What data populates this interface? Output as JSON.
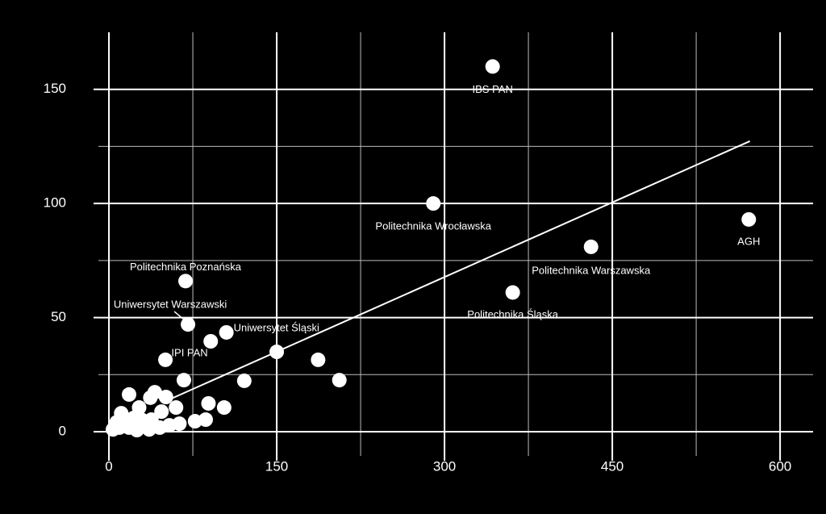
{
  "chart_data": {
    "type": "scatter",
    "x": [
      343,
      290,
      572,
      431,
      361,
      68.5,
      70.7,
      105,
      50.5,
      150,
      187,
      206,
      121,
      91,
      67,
      89,
      103,
      86.5,
      77,
      60,
      51,
      18,
      41,
      37,
      27,
      11,
      47,
      63,
      54,
      45.4,
      36,
      25,
      18,
      9.4,
      3.6,
      29,
      38,
      22,
      14,
      7,
      40
    ],
    "y": [
      160,
      100,
      93,
      81,
      61,
      66,
      47,
      43.5,
      31.5,
      35,
      31.5,
      22.6,
      22.3,
      39.6,
      22.6,
      12.4,
      10.6,
      5.3,
      4.6,
      10.6,
      15.2,
      16.3,
      17.3,
      14.9,
      10.6,
      8.1,
      8.8,
      3.5,
      2.8,
      1.8,
      1,
      0.7,
      1.8,
      1.8,
      1,
      5.3,
      5.3,
      6,
      4.6,
      4.2,
      2.5
    ],
    "point_labels": [
      "IBS PAN",
      "Politechnika Wrocławska",
      "AGH",
      "Politechnika Warszawska",
      "Politechnika Śląska",
      "Politechnika Poznańska",
      "Uniwersytet Warszawski",
      "Uniwersytet Śląski",
      "IPI PAN",
      null,
      null,
      null,
      null,
      null,
      null,
      null,
      null,
      null,
      null,
      null,
      null,
      null,
      null,
      null,
      null,
      null,
      null,
      null,
      null,
      null,
      null,
      null,
      null,
      null,
      null,
      null,
      null,
      null,
      null,
      null,
      null
    ],
    "color": "#ffffff",
    "trendline": {
      "x": [
        54,
        573
      ],
      "y": [
        14.1,
        127.3
      ]
    },
    "xlim": [
      -9.4,
      629.5
    ],
    "ylim": [
      -10.6,
      175
    ],
    "xticks": [
      0,
      150,
      300,
      450,
      600
    ],
    "yticks": [
      0,
      50,
      100,
      150
    ],
    "xminor": [
      75,
      225,
      375,
      525
    ],
    "yminor": [
      25,
      75,
      125
    ],
    "grid": true
  }
}
